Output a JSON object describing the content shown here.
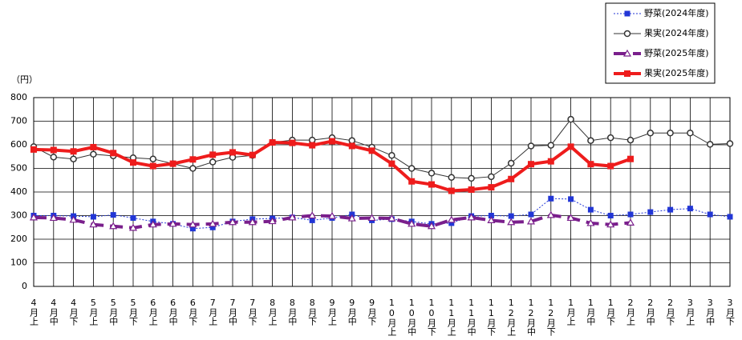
{
  "chart_data": {
    "type": "line",
    "y_label": "（円）",
    "categories": [
      "4月上",
      "4月中",
      "4月下",
      "5月上",
      "5月中",
      "5月下",
      "6月上",
      "6月中",
      "6月下",
      "7月上",
      "7月中",
      "7月下",
      "8月上",
      "8月中",
      "8月下",
      "9月上",
      "9月中",
      "9月下",
      "10月上",
      "10月中",
      "10月下",
      "11月上",
      "11月中",
      "11月下",
      "12月上",
      "12月中",
      "12月下",
      "1月上",
      "1月中",
      "1月下",
      "2月上",
      "2月中",
      "2月下",
      "3月上",
      "3月中",
      "3月下"
    ],
    "ylim": [
      0,
      800
    ],
    "yticks": [
      0,
      100,
      200,
      300,
      400,
      500,
      600,
      700,
      800
    ],
    "grid": true,
    "legend": "top-right",
    "series": [
      {
        "name": "野菜(2024年度)",
        "color": "#2236d6",
        "marker": "square",
        "line_style": "dotted",
        "values": [
          300,
          300,
          298,
          295,
          303,
          290,
          275,
          265,
          245,
          250,
          275,
          285,
          288,
          292,
          280,
          290,
          305,
          280,
          285,
          275,
          265,
          268,
          298,
          300,
          298,
          305,
          372,
          370,
          325,
          300,
          305,
          315,
          325,
          330,
          305,
          295
        ]
      },
      {
        "name": "果実(2024年度)",
        "color": "#333333",
        "marker": "circle",
        "line_style": "solid",
        "values": [
          592,
          548,
          540,
          560,
          553,
          545,
          540,
          520,
          500,
          527,
          547,
          555,
          610,
          620,
          620,
          630,
          618,
          590,
          555,
          500,
          480,
          462,
          458,
          465,
          522,
          595,
          598,
          708,
          618,
          630,
          620,
          650,
          650,
          650,
          602,
          605
        ]
      },
      {
        "name": "野菜(2025年度)",
        "color": "#7a1f8c",
        "marker": "triangle",
        "line_style": "dashed",
        "values": [
          292,
          290,
          282,
          262,
          255,
          248,
          262,
          265,
          262,
          265,
          272,
          272,
          276,
          292,
          300,
          298,
          288,
          290,
          288,
          265,
          255,
          282,
          292,
          280,
          272,
          275,
          302,
          290,
          268,
          262,
          270,
          null,
          null,
          null,
          null,
          null
        ]
      },
      {
        "name": "果実(2025年度)",
        "color": "#ee1c1c",
        "marker": "square",
        "line_style": "thick",
        "values": [
          580,
          578,
          572,
          590,
          565,
          525,
          510,
          520,
          538,
          558,
          568,
          557,
          610,
          608,
          598,
          615,
          595,
          575,
          520,
          445,
          432,
          405,
          410,
          420,
          455,
          518,
          530,
          592,
          518,
          510,
          540,
          null,
          null,
          null,
          null,
          null
        ]
      }
    ]
  }
}
